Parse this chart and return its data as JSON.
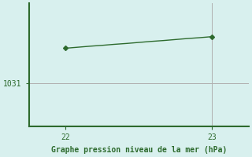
{
  "x": [
    22.0,
    22.083,
    22.167,
    22.25,
    22.333,
    22.417,
    22.5,
    22.583,
    22.667,
    22.75,
    22.833,
    22.917,
    23.0
  ],
  "y": [
    1033.4,
    1033.47,
    1033.54,
    1033.6,
    1033.67,
    1033.73,
    1033.8,
    1033.87,
    1033.93,
    1034.0,
    1034.07,
    1034.13,
    1034.2
  ],
  "line_color": "#2d6a2d",
  "marker_color": "#2d6a2d",
  "bg_color": "#d8f0ee",
  "grid_color": "#b0b0b0",
  "xlabel": "Graphe pression niveau de la mer (hPa)",
  "xlabel_color": "#2d6a2d",
  "xticks": [
    22,
    23
  ],
  "ytick_val": 1031,
  "ylim": [
    1028.0,
    1036.5
  ],
  "xlim": [
    21.75,
    23.25
  ],
  "tick_color": "#2d6a2d",
  "spine_color": "#2d6a2d",
  "axis_lw": 1.5
}
